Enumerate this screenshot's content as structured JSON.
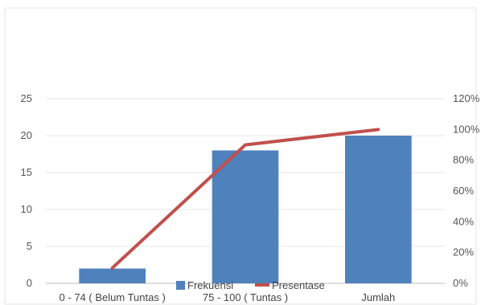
{
  "chart_data": {
    "type": "bar",
    "categories": [
      "0 - 74 ( Belum Tuntas )",
      "75 - 100 ( Tuntas )",
      "Jumlah"
    ],
    "series": [
      {
        "name": "Frekuensi",
        "type": "bar",
        "axis": "left",
        "values": [
          2,
          18,
          20
        ],
        "color": "#4f81bd"
      },
      {
        "name": "Presentase",
        "type": "line",
        "axis": "right",
        "values": [
          0.1,
          0.9,
          1.0
        ],
        "color": "#c0504d"
      }
    ],
    "ylim_left": [
      0,
      25
    ],
    "yticks_left": [
      "0",
      "5",
      "10",
      "15",
      "20",
      "25"
    ],
    "ylim_right": [
      0,
      1.2
    ],
    "yticks_right": [
      "0%",
      "20%",
      "40%",
      "60%",
      "80%",
      "100%",
      "120%"
    ],
    "grid": true,
    "legend_position": "bottom"
  }
}
